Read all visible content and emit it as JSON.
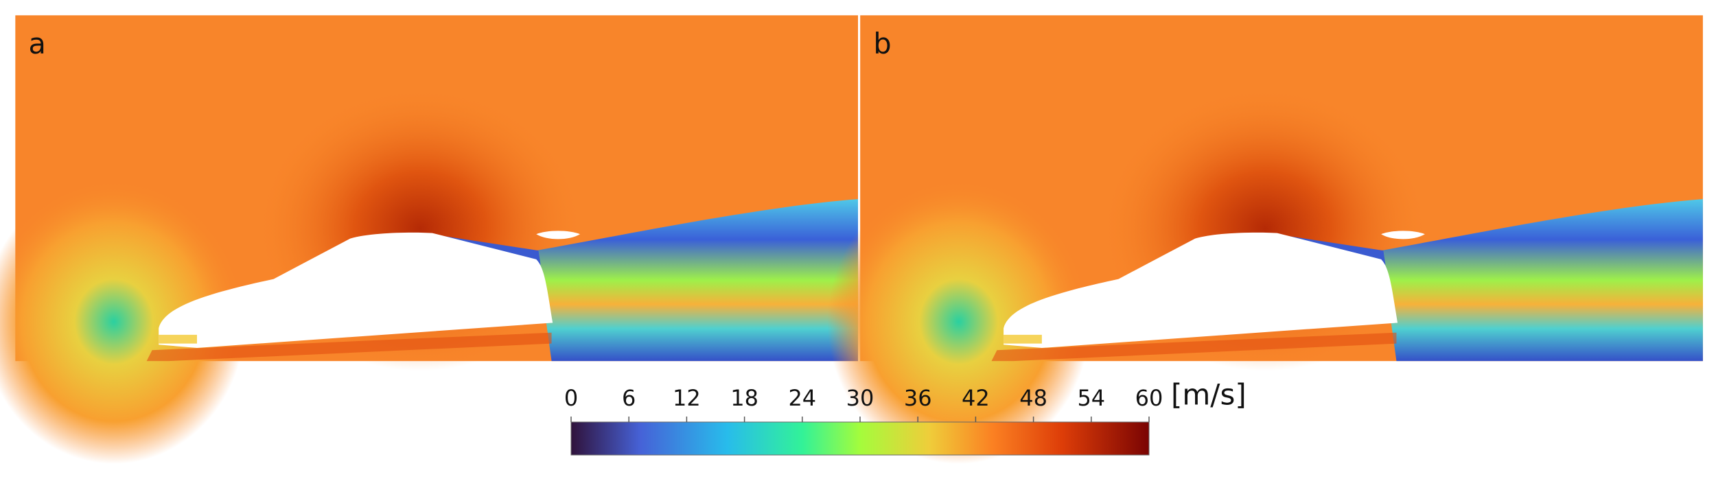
{
  "panels": [
    {
      "label": "a"
    },
    {
      "label": "b"
    }
  ],
  "colorbar": {
    "range": [
      0,
      60
    ],
    "ticks": [
      0,
      6,
      12,
      18,
      24,
      30,
      36,
      42,
      48,
      54,
      60
    ],
    "unit": "[m/s]"
  }
}
